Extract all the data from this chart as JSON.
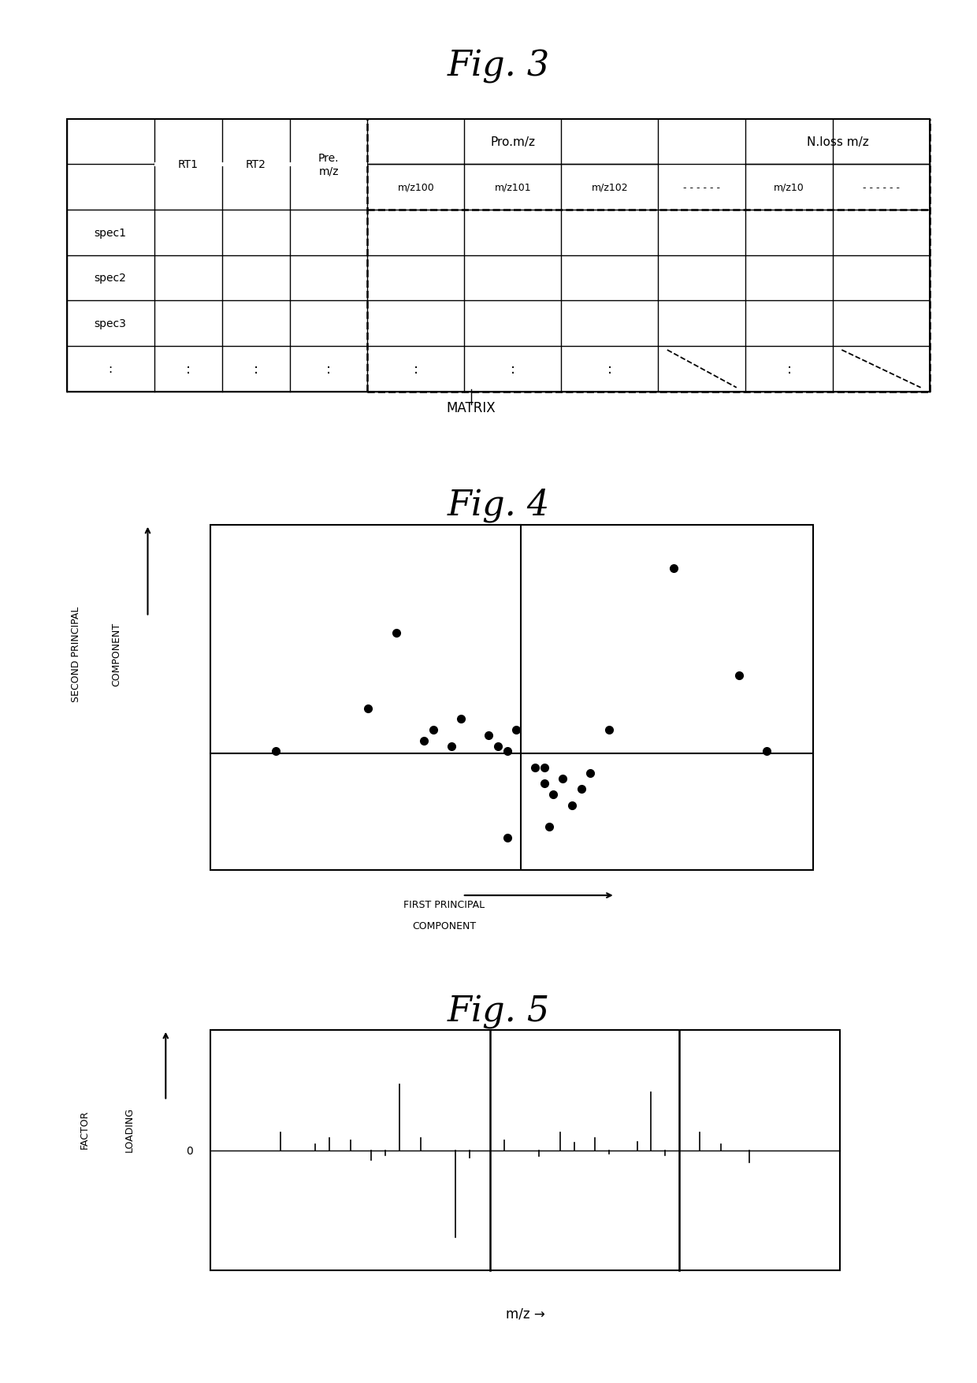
{
  "fig3_title": "Fig. 3",
  "fig4_title": "Fig. 4",
  "fig5_title": "Fig. 5",
  "matrix_label": "MATRIX",
  "scatter_points_x": [
    -2.8,
    -1.8,
    -1.5,
    -1.2,
    -1.1,
    -0.9,
    -0.8,
    -0.5,
    -0.4,
    -0.3,
    -0.2,
    0.0,
    0.1,
    0.2,
    0.3,
    0.5,
    0.6,
    0.8,
    1.5,
    2.2,
    2.5,
    0.1,
    0.4,
    0.15,
    -0.3
  ],
  "scatter_points_y": [
    0.1,
    0.5,
    1.2,
    0.2,
    0.3,
    0.15,
    0.4,
    0.25,
    0.15,
    0.1,
    0.3,
    -0.05,
    -0.2,
    -0.3,
    -0.15,
    -0.25,
    -0.1,
    0.3,
    1.8,
    0.8,
    0.1,
    -0.05,
    -0.4,
    -0.6,
    -0.7
  ],
  "ylabel_fig4_line1": "SECOND PRINCIPAL",
  "ylabel_fig4_line2": "COMPONENT",
  "xlabel_fig4_line1": "FIRST PRINCIPAL",
  "xlabel_fig4_line2": "COMPONENT",
  "fig5_bar_positions": [
    -3.5,
    -2.8,
    -2.2,
    -1.8,
    -1.0,
    0.5,
    1.0,
    1.8,
    2.5,
    3.2,
    -3.0,
    -2.5,
    -2.0,
    -1.5,
    -0.8,
    -0.3,
    0.2,
    0.7,
    1.2,
    1.6,
    2.0,
    2.8
  ],
  "fig5_bar_heights": [
    0.15,
    0.1,
    -0.08,
    0.55,
    -0.72,
    0.15,
    0.1,
    0.48,
    0.15,
    -0.1,
    0.05,
    0.08,
    -0.04,
    0.1,
    -0.06,
    0.08,
    -0.05,
    0.06,
    -0.03,
    0.07,
    -0.04,
    0.05
  ],
  "xlabel_fig5": "m/z →",
  "ylabel_fig5_line1": "FACTOR",
  "ylabel_fig5_line2": "LOADING",
  "bg_color": "#ffffff",
  "line_color": "#000000"
}
